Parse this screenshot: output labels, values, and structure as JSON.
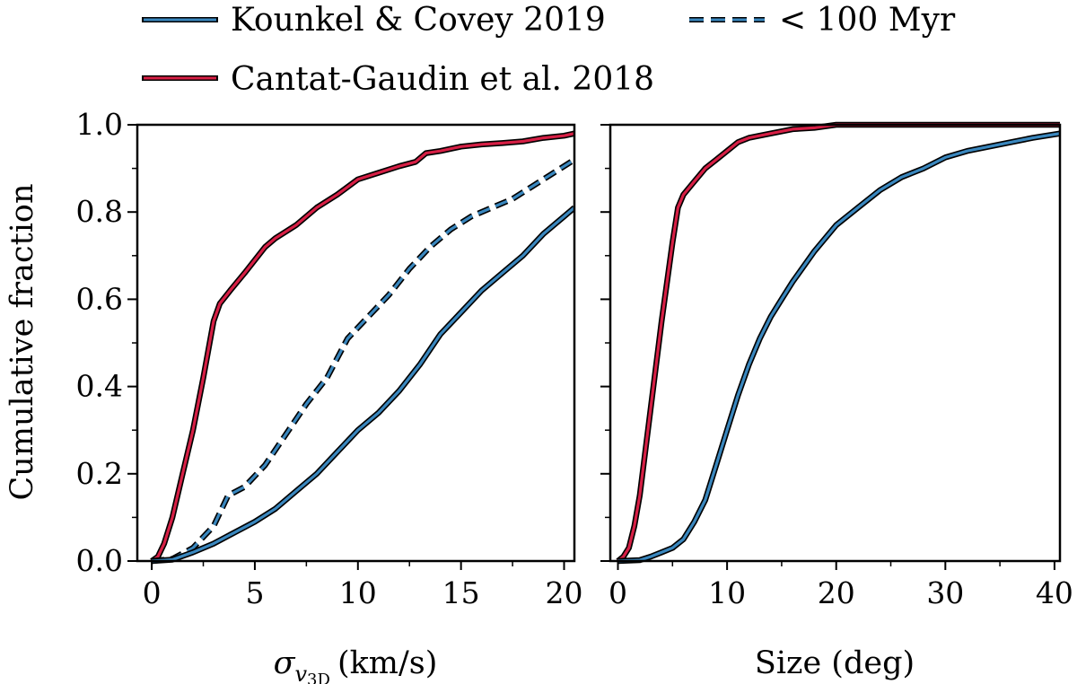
{
  "legend": {
    "entries": [
      {
        "label": "Kounkel & Covey 2019",
        "color": "#3a87be",
        "style": "solid"
      },
      {
        "label": "< 100 Myr",
        "color": "#3a87be",
        "style": "dashed"
      },
      {
        "label": "Cantat-Gaudin et al. 2018",
        "color": "#d61f45",
        "style": "solid"
      }
    ]
  },
  "chart_data": [
    {
      "type": "line",
      "title": "",
      "xlabel_symbol": "σ",
      "xlabel_sub": "v",
      "xlabel_subsub": "3D",
      "xlabel_unit": "(km/s)",
      "ylabel": "Cumulative fraction",
      "xlim": [
        -0.7,
        20.5
      ],
      "ylim": [
        0,
        1.0
      ],
      "xticks": [
        0,
        5,
        10,
        15,
        20
      ],
      "xtick_labels": [
        "0",
        "5",
        "10",
        "15",
        "20"
      ],
      "yticks": [
        0,
        0.2,
        0.4,
        0.6,
        0.8,
        1.0
      ],
      "ytick_labels": [
        "0.0",
        "0.2",
        "0.4",
        "0.6",
        "0.8",
        "1.0"
      ],
      "series": [
        {
          "name": "Cantat-Gaudin et al. 2018",
          "color": "#d61f45",
          "style": "solid",
          "x": [
            0,
            0.3,
            0.6,
            1.0,
            1.5,
            2.0,
            2.5,
            3.0,
            3.3,
            3.8,
            4.5,
            5.0,
            5.5,
            6.0,
            7.0,
            8.0,
            9.0,
            10.0,
            11.0,
            12.0,
            12.8,
            13.3,
            14.0,
            15.0,
            16.0,
            17.0,
            18.0,
            19.0,
            20.0,
            20.5
          ],
          "y": [
            0,
            0.01,
            0.04,
            0.1,
            0.2,
            0.3,
            0.42,
            0.55,
            0.59,
            0.62,
            0.66,
            0.69,
            0.72,
            0.74,
            0.77,
            0.81,
            0.84,
            0.875,
            0.89,
            0.905,
            0.915,
            0.935,
            0.94,
            0.95,
            0.955,
            0.958,
            0.962,
            0.97,
            0.975,
            0.98
          ]
        },
        {
          "name": "< 100 Myr",
          "color": "#3a87be",
          "style": "dashed",
          "x": [
            0,
            1.0,
            2.0,
            3.0,
            3.7,
            4.5,
            5.5,
            6.5,
            7.5,
            8.5,
            9.5,
            10.5,
            11.5,
            12.5,
            13.5,
            14.5,
            15.5,
            16.5,
            17.5,
            18.5,
            19.5,
            20.5
          ],
          "y": [
            0,
            0.005,
            0.03,
            0.08,
            0.15,
            0.17,
            0.22,
            0.29,
            0.36,
            0.42,
            0.51,
            0.56,
            0.61,
            0.67,
            0.72,
            0.76,
            0.79,
            0.81,
            0.83,
            0.86,
            0.89,
            0.92
          ]
        },
        {
          "name": "Kounkel & Covey 2019",
          "color": "#3a87be",
          "style": "solid",
          "x": [
            0,
            1.0,
            2.0,
            3.0,
            4.0,
            5.0,
            6.0,
            7.0,
            8.0,
            9.0,
            10.0,
            11.0,
            12.0,
            13.0,
            14.0,
            15.0,
            16.0,
            17.0,
            18.0,
            19.0,
            20.0,
            20.5
          ],
          "y": [
            0,
            0.003,
            0.02,
            0.04,
            0.065,
            0.09,
            0.12,
            0.16,
            0.2,
            0.25,
            0.3,
            0.34,
            0.39,
            0.45,
            0.52,
            0.57,
            0.62,
            0.66,
            0.7,
            0.75,
            0.79,
            0.81
          ]
        }
      ]
    },
    {
      "type": "line",
      "title": "",
      "xlabel": "Size (deg)",
      "ylabel": "",
      "xlim": [
        -0.7,
        40.5
      ],
      "ylim": [
        0,
        1.0
      ],
      "xticks": [
        0,
        10,
        20,
        30,
        40
      ],
      "xtick_labels": [
        "0",
        "10",
        "20",
        "30",
        "40"
      ],
      "yticks": [
        0,
        0.2,
        0.4,
        0.6,
        0.8,
        1.0
      ],
      "series": [
        {
          "name": "Cantat-Gaudin et al. 2018",
          "color": "#d61f45",
          "style": "solid",
          "x": [
            0,
            0.5,
            1.0,
            1.5,
            2.0,
            3.0,
            4.0,
            5.0,
            5.5,
            6.0,
            7.0,
            8.0,
            9.0,
            10.0,
            11.0,
            12.0,
            14.0,
            16.0,
            18.0,
            20.0,
            25.0,
            30.0,
            35.0,
            40.5
          ],
          "y": [
            0,
            0.01,
            0.03,
            0.08,
            0.15,
            0.35,
            0.55,
            0.73,
            0.81,
            0.84,
            0.87,
            0.9,
            0.92,
            0.94,
            0.96,
            0.97,
            0.98,
            0.99,
            0.993,
            1.0,
            1.0,
            1.0,
            1.0,
            1.0
          ]
        },
        {
          "name": "Kounkel & Covey 2019",
          "color": "#3a87be",
          "style": "solid",
          "x": [
            0,
            2.0,
            3.0,
            4.0,
            5.0,
            6.0,
            7.0,
            8.0,
            9.0,
            10.0,
            11.0,
            12.0,
            13.0,
            14.0,
            15.0,
            16.0,
            18.0,
            20.0,
            22.0,
            24.0,
            26.0,
            28.0,
            30.0,
            32.0,
            34.0,
            36.0,
            38.0,
            40.5
          ],
          "y": [
            0,
            0.002,
            0.01,
            0.02,
            0.03,
            0.05,
            0.09,
            0.14,
            0.22,
            0.3,
            0.38,
            0.45,
            0.51,
            0.56,
            0.6,
            0.64,
            0.71,
            0.77,
            0.81,
            0.85,
            0.88,
            0.9,
            0.925,
            0.94,
            0.95,
            0.96,
            0.97,
            0.98
          ]
        }
      ]
    }
  ]
}
